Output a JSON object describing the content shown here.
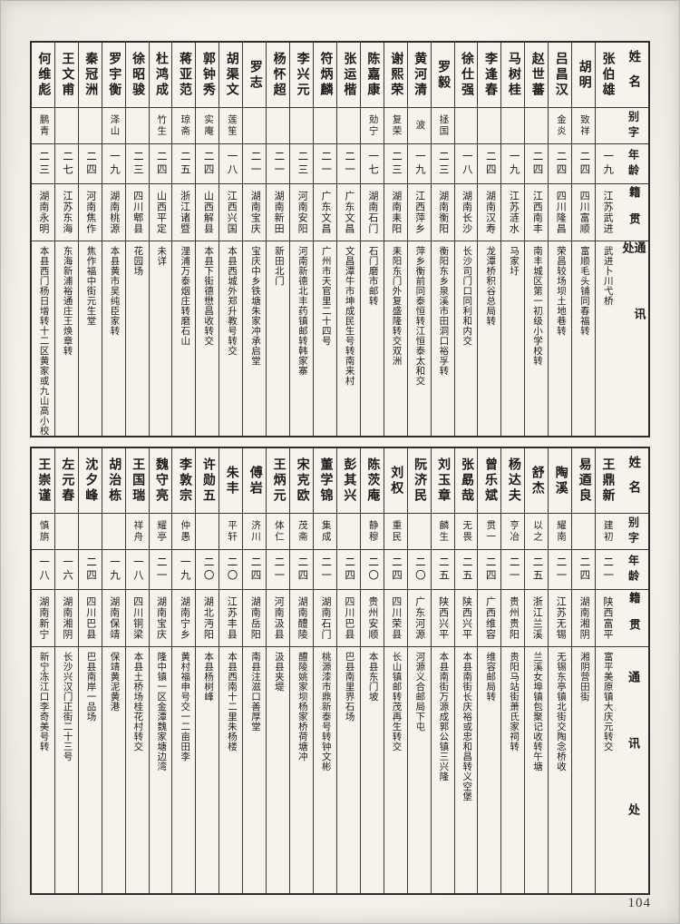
{
  "page": {
    "number": "104"
  },
  "headers": {
    "name": "姓名",
    "alias": "别字",
    "age": "年龄",
    "origin": "籍贯",
    "address": "通讯处"
  },
  "tables": [
    {
      "persons": [
        {
          "name": "张伯雄",
          "alias": "",
          "age": "一九",
          "origin": "江苏武进",
          "address": "武进卜川弋桥"
        },
        {
          "name": "胡明",
          "alias": "致祥",
          "age": "二四",
          "origin": "四川富顺",
          "address": "富顺毛头铺同春福转"
        },
        {
          "name": "吕昌汉",
          "alias": "金炎",
          "age": "二四",
          "origin": "四川隆昌",
          "address": "荣昌较场坝土地巷转"
        },
        {
          "name": "赵世蕃",
          "alias": "",
          "age": "二四",
          "origin": "江西南丰",
          "address": "南丰城区第一初级小学校转"
        },
        {
          "name": "马树桂",
          "alias": "",
          "age": "一九",
          "origin": "江苏涟水",
          "address": "马家圩"
        },
        {
          "name": "李逢春",
          "alias": "",
          "age": "二四",
          "origin": "湖南汉寿",
          "address": "龙潭桥积谷总局转"
        },
        {
          "name": "徐仕强",
          "alias": "",
          "age": "一八",
          "origin": "湖南长沙",
          "address": "长沙司门口同利和内交"
        },
        {
          "name": "罗毅",
          "alias": "拯国",
          "age": "二三",
          "origin": "湖南衡阳",
          "address": "衡阳东乡泉溪市田洞口裕孚转"
        },
        {
          "name": "黄河清",
          "alias": "波",
          "age": "一九",
          "origin": "江西萍乡",
          "address": "萍乡衡前同泰恒转江恒泰太和交"
        },
        {
          "name": "谢熙荣",
          "alias": "复荣",
          "age": "二三",
          "origin": "湖南耒阳",
          "address": "耒阳东门外复盛隆转交双洲"
        },
        {
          "name": "陈嘉康",
          "alias": "勀宁",
          "age": "一七",
          "origin": "湖南石门",
          "address": "石门磨市邮转"
        },
        {
          "name": "张运楷",
          "alias": "",
          "age": "二一",
          "origin": "广东文昌",
          "address": "文昌潭牛市坤成民生号转南来村"
        },
        {
          "name": "符炳麟",
          "alias": "",
          "age": "二一",
          "origin": "广东文昌",
          "address": "广州市天官里二十四号"
        },
        {
          "name": "李兴元",
          "alias": "",
          "age": "二三",
          "origin": "河南安阳",
          "address": "河南新德北丰药镇邮转韩家寨"
        },
        {
          "name": "杨怀超",
          "alias": "",
          "age": "二一",
          "origin": "湖南新田",
          "address": "新田北门"
        },
        {
          "name": "罗志",
          "alias": "",
          "age": "二一",
          "origin": "湖南宝庆",
          "address": "宝庆中乡铁塘朱家冲承启堂"
        },
        {
          "name": "胡渠文",
          "alias": "莲笙",
          "age": "一八",
          "origin": "江西兴国",
          "address": "本县西城外郑升教号转交"
        },
        {
          "name": "郭钟秀",
          "alias": "实庵",
          "age": "二四",
          "origin": "山西解县",
          "address": "本县下街德懋昌收转交"
        },
        {
          "name": "蒋亚范",
          "alias": "琼斋",
          "age": "二五",
          "origin": "浙江诸暨",
          "address": "浬浦万泰烟庄转磨石山"
        },
        {
          "name": "杜鸿成",
          "alias": "竹生",
          "age": "二四",
          "origin": "山西平定",
          "address": "未详"
        },
        {
          "name": "徐昭骏",
          "alias": "",
          "age": "二三",
          "origin": "四川郫县",
          "address": "花园场"
        },
        {
          "name": "罗宇衡",
          "alias": "泽山",
          "age": "一九",
          "origin": "湖南桃源",
          "address": "本县黄市吴纯臣家转"
        },
        {
          "name": "秦冠洲",
          "alias": "",
          "age": "二四",
          "origin": "河南焦作",
          "address": "焦作福中街元生堂"
        },
        {
          "name": "王文甫",
          "alias": "",
          "age": "二七",
          "origin": "江苏东海",
          "address": "东海新浦裕通庄王焕章转"
        },
        {
          "name": "何维彪",
          "alias": "鹏青",
          "age": "二三",
          "origin": "湖南永明",
          "address": "本县西门杨日增转十二区黄家或九山高小校"
        }
      ]
    },
    {
      "persons": [
        {
          "name": "王鼎新",
          "alias": "建初",
          "age": "二一",
          "origin": "陕西富平",
          "address": "富平美原镇大庆元转交"
        },
        {
          "name": "易逎良",
          "alias": "",
          "age": "二四",
          "origin": "湖南湘阴",
          "address": "湘阴营田街"
        },
        {
          "name": "陶溪",
          "alias": "耀南",
          "age": "二一",
          "origin": "江苏无锡",
          "address": "无锡东亭镇北街交陶念桥收"
        },
        {
          "name": "舒杰",
          "alias": "以之",
          "age": "二五",
          "origin": "浙江兰溪",
          "address": "兰溪女埠镇包聚记收转午塘"
        },
        {
          "name": "杨达夫",
          "alias": "亨冶",
          "age": "二一",
          "origin": "贵州贵阳",
          "address": "贵阳马站街萧氏家祠转"
        },
        {
          "name": "曾乐斌",
          "alias": "贯一",
          "age": "二四",
          "origin": "广西维容",
          "address": "维容邮局转"
        },
        {
          "name": "张勗哉",
          "alias": "无畏",
          "age": "二五",
          "origin": "陕西兴平",
          "address": "本县南街长庆裕或忠和昌转义空堡"
        },
        {
          "name": "刘玉章",
          "alias": "麟生",
          "age": "二五",
          "origin": "陕西兴平",
          "address": "本县南街万源成郭公镇三兴隆"
        },
        {
          "name": "阮济民",
          "alias": "",
          "age": "二〇",
          "origin": "广东河源",
          "address": "河源义合邮局下屯"
        },
        {
          "name": "刘权",
          "alias": "重民",
          "age": "二四",
          "origin": "四川荣县",
          "address": "长山镇邮转茂再生转交"
        },
        {
          "name": "陈茨庵",
          "alias": "静穆",
          "age": "二〇",
          "origin": "贵州安顺",
          "address": "本县东门坡"
        },
        {
          "name": "彭其兴",
          "alias": "",
          "age": "二四",
          "origin": "四川巴县",
          "address": "巴县南里界石场"
        },
        {
          "name": "董学锦",
          "alias": "集成",
          "age": "二一",
          "origin": "湖南石门",
          "address": "桃源漆市鼎新泰号转钟文彬"
        },
        {
          "name": "宋克欧",
          "alias": "茂斋",
          "age": "二四",
          "origin": "湖南醴陵",
          "address": "醴陵姚家坝杨家桥荷塘冲"
        },
        {
          "name": "王炳元",
          "alias": "体仁",
          "age": "二一",
          "origin": "河南汲县",
          "address": "汲县夹堤"
        },
        {
          "name": "傅岩",
          "alias": "济川",
          "age": "二四",
          "origin": "湖南岳阳",
          "address": "南县注滋口善厚堂"
        },
        {
          "name": "朱丰",
          "alias": "平轩",
          "age": "二〇",
          "origin": "江苏丰县",
          "address": "本县西南十二里朱杨楼"
        },
        {
          "name": "许勋五",
          "alias": "",
          "age": "二〇",
          "origin": "湖北沔阳",
          "address": "本县杨树峰"
        },
        {
          "name": "李敦宗",
          "alias": "仲愚",
          "age": "一九",
          "origin": "湖南宁乡",
          "address": "黄村福申号交一二亩田李"
        },
        {
          "name": "魏守亮",
          "alias": "耀亭",
          "age": "二一",
          "origin": "湖南宝庆",
          "address": "隆中镇一区金潭魏家塘边湾"
        },
        {
          "name": "王国瑞",
          "alias": "祥舟",
          "age": "一八",
          "origin": "四川铜梁",
          "address": "本县土桥场桂花村转交"
        },
        {
          "name": "胡治栋",
          "alias": "",
          "age": "一九",
          "origin": "湖南保靖",
          "address": "保靖黄泥黄港"
        },
        {
          "name": "沈夕峰",
          "alias": "",
          "age": "二四",
          "origin": "四川巴县",
          "address": "巴县南岸一品场"
        },
        {
          "name": "左元春",
          "alias": "",
          "age": "一六",
          "origin": "湖南湘阴",
          "address": "长沙兴汉门正街二十三号"
        },
        {
          "name": "王崇谨",
          "alias": "慎旃",
          "age": "一八",
          "origin": "湖南新宁",
          "address": "新宁冻江口李奇美号转"
        }
      ]
    }
  ]
}
